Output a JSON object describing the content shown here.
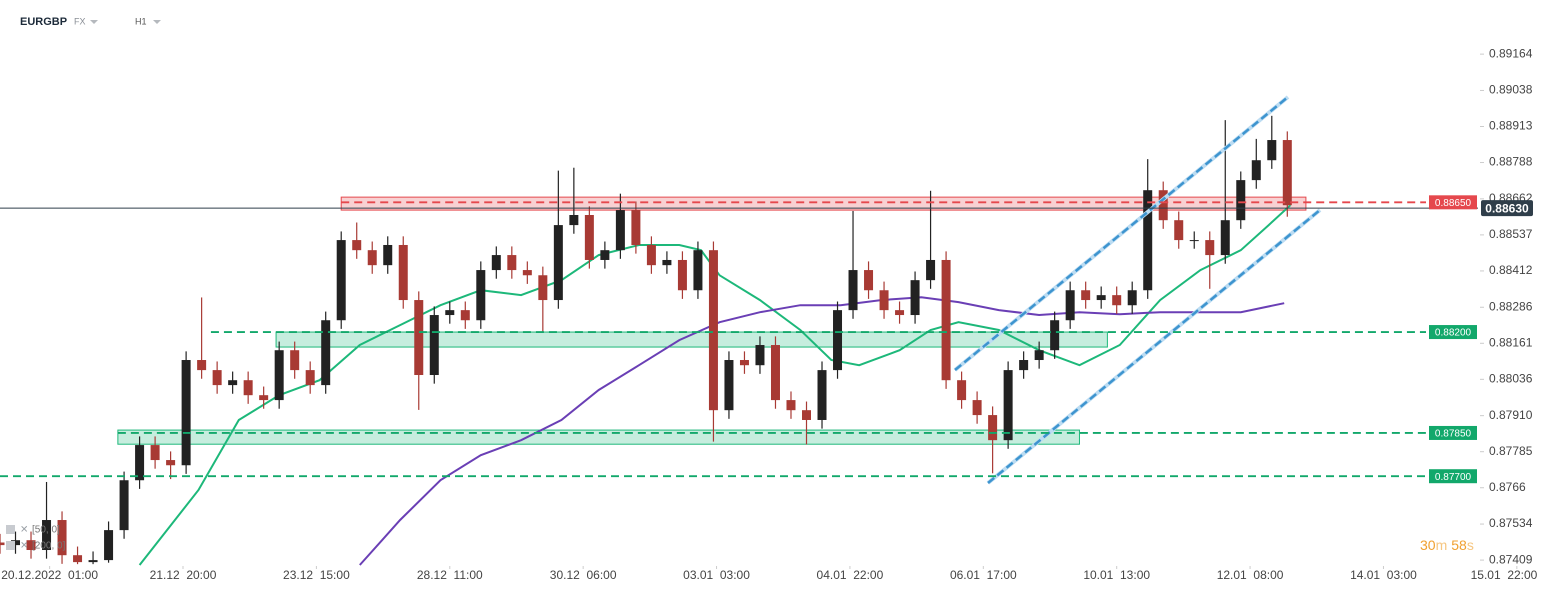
{
  "chart_data": {
    "type": "candlestick",
    "symbol": "EURGBP",
    "market": "FX",
    "timeframe": "H1",
    "xlim": [
      0,
      498.4
    ],
    "ylim": [
      0.87392,
      0.89324
    ],
    "xticks": [
      {
        "value": 16,
        "label": "20.12.2022  01:00"
      },
      {
        "value": 59,
        "label": "21.12  20:00"
      },
      {
        "value": 102,
        "label": "23.12  15:00"
      },
      {
        "value": 145,
        "label": "28.12  11:00"
      },
      {
        "value": 188,
        "label": "30.12  06:00"
      },
      {
        "value": 231,
        "label": "03.01  03:00"
      },
      {
        "value": 274,
        "label": "04.01  22:00"
      },
      {
        "value": 317,
        "label": "06.01  17:00"
      },
      {
        "value": 360,
        "label": "10.01  13:00"
      },
      {
        "value": 403,
        "label": "12.01  08:00"
      },
      {
        "value": 446,
        "label": "14.01  03:00"
      },
      {
        "value": 489,
        "label": "15.01  22:00"
      }
    ],
    "yticks": [
      0.89164,
      0.89038,
      0.88913,
      0.88788,
      0.88662,
      0.88537,
      0.88412,
      0.88286,
      0.88161,
      0.88036,
      {
        "value": 0.8791,
        "label": "0.87910"
      },
      0.87785,
      0.8766,
      0.87534,
      0.87409
    ],
    "candles": {
      "up_color": "#222222",
      "down_color": "#a83a34",
      "x": [
        0,
        5,
        10,
        15,
        20,
        25,
        30,
        35,
        40,
        45,
        50,
        55,
        60,
        65,
        70,
        75,
        80,
        85,
        90,
        95,
        100,
        105,
        110,
        115,
        120,
        125,
        130,
        135,
        140,
        145,
        150,
        155,
        160,
        165,
        170,
        175,
        180,
        185,
        190,
        195,
        200,
        205,
        210,
        215,
        220,
        225,
        230,
        235,
        240,
        245,
        250,
        255,
        260,
        265,
        270,
        275,
        280,
        285,
        290,
        295,
        300,
        305,
        310,
        315,
        320,
        325,
        330,
        335,
        340,
        345,
        350,
        355,
        360,
        365,
        370,
        375,
        380,
        385,
        390,
        395,
        400,
        405,
        410,
        415
      ],
      "open": [
        0.8747,
        0.87461,
        0.87478,
        0.87444,
        0.87548,
        0.87426,
        0.87402,
        0.87409,
        0.87513,
        0.87686,
        0.87808,
        0.87756,
        0.87738,
        0.88103,
        0.88068,
        0.88016,
        0.88033,
        0.87981,
        0.87964,
        0.88137,
        0.88068,
        0.88016,
        0.88241,
        0.88519,
        0.88484,
        0.88432,
        0.88502,
        0.88311,
        0.88051,
        0.88259,
        0.88276,
        0.88241,
        0.88415,
        0.88467,
        0.88415,
        0.88397,
        0.88311,
        0.88571,
        0.88606,
        0.8845,
        0.88484,
        0.88623,
        0.88502,
        0.88432,
        0.8845,
        0.88345,
        0.88484,
        0.87929,
        0.88103,
        0.88085,
        0.88155,
        0.87964,
        0.87929,
        0.87895,
        0.88068,
        0.88276,
        0.88415,
        0.88345,
        0.88276,
        0.88259,
        0.8838,
        0.8845,
        0.88033,
        0.87964,
        0.87912,
        0.87825,
        0.88068,
        0.88103,
        0.88137,
        0.88241,
        0.88345,
        0.88311,
        0.88328,
        0.88293,
        0.88345,
        0.88692,
        0.88588,
        0.88519,
        0.88519,
        0.88467,
        0.88588,
        0.88727,
        0.88796,
        0.88866
      ],
      "high": [
        0.875,
        0.87508,
        0.87508,
        0.8768,
        0.87578,
        0.87456,
        0.87439,
        0.87543,
        0.87716,
        0.87838,
        0.87838,
        0.87786,
        0.88133,
        0.8832,
        0.88098,
        0.88063,
        0.88063,
        0.88011,
        0.88167,
        0.88167,
        0.88098,
        0.88271,
        0.88549,
        0.8858,
        0.88514,
        0.88532,
        0.88532,
        0.88341,
        0.88289,
        0.88306,
        0.88306,
        0.88445,
        0.88497,
        0.88497,
        0.88445,
        0.88427,
        0.8876,
        0.8877,
        0.88636,
        0.88514,
        0.8868,
        0.88653,
        0.88532,
        0.8848,
        0.8848,
        0.88514,
        0.88514,
        0.88133,
        0.88133,
        0.88185,
        0.88185,
        0.87994,
        0.87959,
        0.88098,
        0.88306,
        0.8862,
        0.88445,
        0.88375,
        0.88306,
        0.8841,
        0.8869,
        0.8848,
        0.88063,
        0.87994,
        0.87942,
        0.88098,
        0.88133,
        0.88167,
        0.88271,
        0.88375,
        0.88375,
        0.88358,
        0.88358,
        0.88375,
        0.888,
        0.88722,
        0.88618,
        0.88549,
        0.88549,
        0.88935,
        0.88757,
        0.8887,
        0.8895,
        0.88896
      ],
      "low": [
        0.87431,
        0.87431,
        0.87414,
        0.87414,
        0.87396,
        0.87395,
        0.87395,
        0.874,
        0.87483,
        0.87656,
        0.87726,
        0.8769,
        0.87708,
        0.88038,
        0.87986,
        0.87986,
        0.87951,
        0.87934,
        0.87934,
        0.88038,
        0.87986,
        0.87986,
        0.88211,
        0.88454,
        0.88402,
        0.88402,
        0.88281,
        0.8793,
        0.88021,
        0.88229,
        0.88211,
        0.88211,
        0.88385,
        0.88385,
        0.88367,
        0.882,
        0.88281,
        0.88541,
        0.8842,
        0.8842,
        0.88454,
        0.88472,
        0.88402,
        0.88402,
        0.88315,
        0.88315,
        0.8782,
        0.87899,
        0.88055,
        0.88055,
        0.87934,
        0.87899,
        0.8781,
        0.87865,
        0.88038,
        0.88246,
        0.88315,
        0.88246,
        0.88229,
        0.88229,
        0.8835,
        0.88003,
        0.87934,
        0.87882,
        0.8771,
        0.87795,
        0.88038,
        0.88073,
        0.88107,
        0.88211,
        0.88281,
        0.88281,
        0.88263,
        0.88263,
        0.88315,
        0.88558,
        0.88489,
        0.88489,
        0.8835,
        0.88437,
        0.88558,
        0.88697,
        0.88766,
        0.886
      ],
      "close": [
        0.87461,
        0.87478,
        0.87444,
        0.87548,
        0.87426,
        0.87402,
        0.87409,
        0.87513,
        0.87686,
        0.87808,
        0.87756,
        0.87738,
        0.88103,
        0.88068,
        0.88016,
        0.88033,
        0.87981,
        0.87964,
        0.88137,
        0.88068,
        0.88016,
        0.88241,
        0.88519,
        0.88484,
        0.88432,
        0.88502,
        0.88311,
        0.88051,
        0.88259,
        0.88276,
        0.88241,
        0.88415,
        0.88467,
        0.88415,
        0.88397,
        0.88311,
        0.88571,
        0.88606,
        0.8845,
        0.88484,
        0.88623,
        0.88502,
        0.88432,
        0.8845,
        0.88345,
        0.88484,
        0.87929,
        0.88103,
        0.88085,
        0.88155,
        0.87964,
        0.87929,
        0.87895,
        0.88068,
        0.88276,
        0.88415,
        0.88345,
        0.88276,
        0.88259,
        0.8838,
        0.8845,
        0.88033,
        0.87964,
        0.87912,
        0.87825,
        0.88068,
        0.88103,
        0.88137,
        0.88241,
        0.88345,
        0.88311,
        0.88328,
        0.88293,
        0.88345,
        0.88692,
        0.88588,
        0.88519,
        0.88519,
        0.88467,
        0.88588,
        0.88727,
        0.88796,
        0.88866,
        0.8864
      ]
    },
    "series": [
      {
        "name": "[50, 0]",
        "color": "#1db87a",
        "x": [
          45,
          64,
          77,
          90,
          103,
          116,
          129,
          142,
          155,
          168,
          181,
          193,
          206,
          219,
          226,
          232,
          245,
          258,
          268,
          277,
          290,
          300,
          309,
          322,
          335,
          348,
          361,
          374,
          387,
          400,
          409,
          416
        ],
        "values": [
          0.87392,
          0.87652,
          0.87895,
          0.87981,
          0.88033,
          0.88155,
          0.88224,
          0.88293,
          0.88345,
          0.88328,
          0.8838,
          0.88467,
          0.88502,
          0.88502,
          0.88484,
          0.88397,
          0.88311,
          0.88207,
          0.88103,
          0.88085,
          0.88137,
          0.88207,
          0.88234,
          0.88207,
          0.88137,
          0.88085,
          0.88155,
          0.88311,
          0.88415,
          0.88484,
          0.88571,
          0.8864
        ]
      },
      {
        "name": "[200, 0]",
        "color": "#6a3fb5",
        "x": [
          116,
          129,
          142,
          155,
          168,
          181,
          193,
          206,
          219,
          232,
          245,
          258,
          271,
          284,
          297,
          309,
          322,
          335,
          348,
          361,
          374,
          387,
          400,
          414
        ],
        "values": [
          0.87392,
          0.87548,
          0.87686,
          0.87773,
          0.87825,
          0.87895,
          0.87999,
          0.88085,
          0.88172,
          0.88234,
          0.88269,
          0.88293,
          0.88293,
          0.88311,
          0.88321,
          0.88304,
          0.88276,
          0.88259,
          0.88269,
          0.88262,
          0.88269,
          0.88269,
          0.88269,
          0.883
        ]
      }
    ],
    "zones": [
      {
        "from": 110,
        "to": 421,
        "low": 0.88623,
        "high": 0.88668,
        "color": "#e5484d"
      },
      {
        "from": 89,
        "to": 357,
        "low": 0.88148,
        "high": 0.882,
        "color": "#1db87a"
      },
      {
        "from": 38,
        "to": 348,
        "low": 0.87811,
        "high": 0.8786,
        "color": "#1db87a"
      }
    ],
    "levels": [
      {
        "value": 0.8865,
        "label": "0.88650",
        "color": "#e5484d",
        "start": 110
      },
      {
        "value": 0.882,
        "label": "0.88200",
        "color": "#12a86b",
        "start": 68
      },
      {
        "value": 0.8785,
        "label": "0.87850",
        "color": "#12a86b",
        "start": 38
      },
      {
        "value": 0.877,
        "label": "0.87700",
        "color": "#12a86b",
        "start": 0
      }
    ],
    "current_price": {
      "value": 0.8863,
      "label": "0.88630",
      "color": "#2f3e4a"
    },
    "timer": {
      "minutes": "30",
      "minutes_unit": "m",
      "seconds": "58",
      "seconds_unit": "s"
    }
  }
}
